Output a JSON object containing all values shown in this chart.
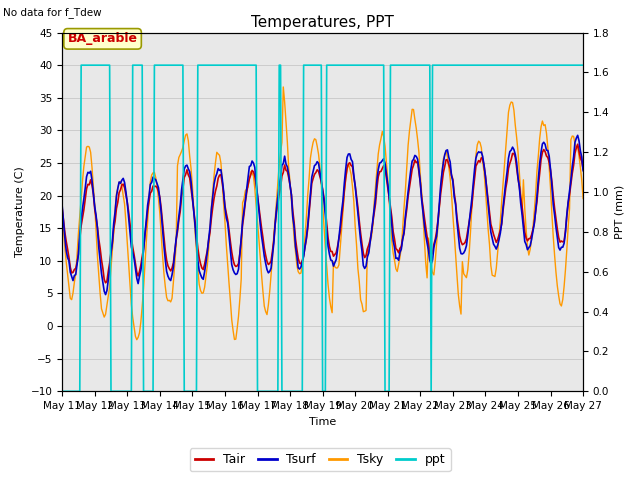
{
  "title": "Temperatures, PPT",
  "topleft_text": "No data for f_Tdew",
  "annotation_text": "BA_arable",
  "xlabel": "Time",
  "ylabel_left": "Temperature (C)",
  "ylabel_right": "PPT (mm)",
  "ylim_left": [
    -10,
    45
  ],
  "ylim_right": [
    0.0,
    1.8
  ],
  "x_tick_labels": [
    "May 11",
    "May 12",
    "May 13",
    "May 14",
    "May 15",
    "May 16",
    "May 17",
    "May 18",
    "May 19",
    "May 20",
    "May 21",
    "May 22",
    "May 23",
    "May 24",
    "May 25",
    "May 26",
    "May 27"
  ],
  "colors": {
    "Tair": "#cc0000",
    "Tsurf": "#0000cc",
    "Tsky": "#ff9900",
    "ppt": "#00cccc",
    "grid": "#cccccc",
    "bg_inner": "#e8e8e8",
    "annotation_bg": "#ffffcc",
    "annotation_border": "#999900",
    "annotation_text": "#cc0000"
  },
  "title_fontsize": 11,
  "label_fontsize": 8,
  "tick_fontsize": 7.5
}
